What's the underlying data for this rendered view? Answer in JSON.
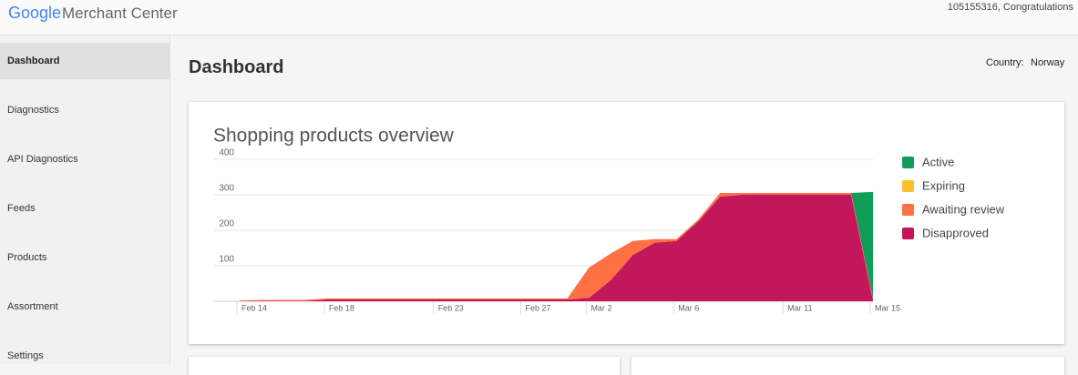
{
  "header": {
    "logo_google": "Google",
    "logo_product": "Merchant Center",
    "account": "105155316, Congratulations"
  },
  "sidebar": {
    "items": [
      "Dashboard",
      "Diagnostics",
      "API Diagnostics",
      "Feeds",
      "Products",
      "Assortment",
      "Settings"
    ]
  },
  "page": {
    "title": "Dashboard",
    "country_label": "Country:",
    "country": "Norway"
  },
  "chart_data": {
    "type": "area",
    "stacked": true,
    "title": "Shopping products overview",
    "categories": [
      "Feb 14",
      null,
      null,
      null,
      "Feb 18",
      null,
      null,
      null,
      null,
      "Feb 23",
      null,
      null,
      null,
      "Feb 27",
      null,
      null,
      "Mar 2",
      null,
      null,
      null,
      "Mar 6",
      null,
      null,
      null,
      null,
      "Mar 11",
      null,
      null,
      null,
      "Mar 15"
    ],
    "series": [
      {
        "name": "Active",
        "color": "#0f9d58",
        "values": [
          0,
          0,
          0,
          0,
          0,
          0,
          0,
          0,
          0,
          0,
          0,
          0,
          0,
          0,
          0,
          0,
          0,
          0,
          0,
          0,
          0,
          0,
          0,
          0,
          0,
          0,
          0,
          0,
          0,
          300
        ]
      },
      {
        "name": "Expiring",
        "color": "#fbc02d",
        "values": [
          0,
          0,
          0,
          0,
          0,
          0,
          0,
          0,
          0,
          0,
          0,
          0,
          0,
          0,
          0,
          0,
          0,
          0,
          0,
          0,
          0,
          0,
          0,
          0,
          0,
          0,
          0,
          0,
          0,
          0
        ]
      },
      {
        "name": "Awaiting review",
        "color": "#ff7043",
        "values": [
          1,
          3,
          3,
          3,
          3,
          3,
          3,
          3,
          3,
          3,
          3,
          3,
          3,
          3,
          3,
          3,
          85,
          75,
          40,
          10,
          5,
          5,
          10,
          5,
          5,
          5,
          5,
          5,
          5,
          5
        ]
      },
      {
        "name": "Disapproved",
        "color": "#c2185b",
        "values": [
          1,
          1,
          1,
          1,
          5,
          5,
          5,
          5,
          5,
          5,
          5,
          5,
          5,
          5,
          5,
          5,
          10,
          60,
          130,
          165,
          170,
          225,
          295,
          300,
          300,
          300,
          300,
          300,
          300,
          3
        ]
      }
    ],
    "ylim": [
      0,
      400
    ],
    "yticks": [
      100,
      200,
      300,
      400
    ],
    "grid": true,
    "legend": "right"
  }
}
